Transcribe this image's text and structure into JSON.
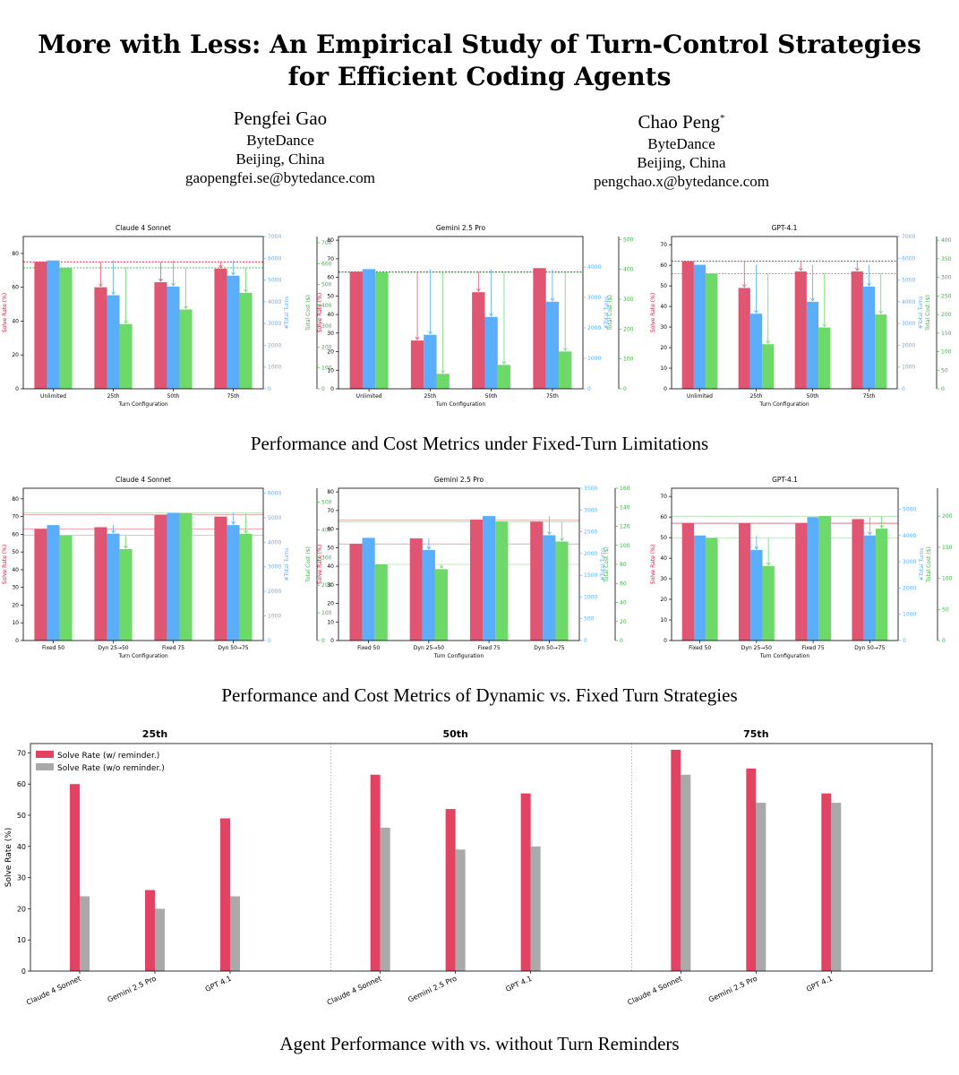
{
  "paper": {
    "title_line1": "More with Less: An Empirical Study of Turn-Control Strategies",
    "title_line2": "for Efficient Coding Agents",
    "authors": [
      {
        "name": "Pengfei Gao",
        "affiliation": "ByteDance",
        "location": "Beijing, China",
        "email": "gaopengfei.se@bytedance.com"
      },
      {
        "name": "Chao Peng",
        "mark": "*",
        "affiliation": "ByteDance",
        "location": "Beijing, China",
        "email": "pengchao.x@bytedance.com"
      }
    ],
    "captions": [
      "Performance and Cost Metrics under Fixed-Turn Limitations",
      "Performance and Cost Metrics of Dynamic vs. Fixed Turn Strategies",
      "Agent Performance with vs. without Turn Reminders"
    ]
  },
  "colors": {
    "solve": "#e05672",
    "turns": "#5aaefc",
    "cost": "#6dd968",
    "grey": "#a9a9a9",
    "red": "#dc143c"
  },
  "axis_labels": {
    "left": "Solve Rate (%)",
    "turns": "#Total Turns",
    "cost": "Total Cost ($)",
    "x": "Turn Configuration"
  },
  "chart_data": [
    {
      "type": "bar",
      "title": "Claude 4 Sonnet",
      "group": "fixed",
      "categories": [
        "Unlimited",
        "25th",
        "50th",
        "75th"
      ],
      "series": [
        {
          "name": "Solve Rate (%)",
          "axis": "left",
          "values": [
            75,
            60,
            63,
            71
          ]
        },
        {
          "name": "#Total Turns",
          "axis": "turns",
          "values": [
            5900,
            4300,
            4700,
            5200
          ]
        },
        {
          "name": "Total Cost ($)",
          "axis": "cost",
          "values": [
            580,
            310,
            380,
            460
          ]
        }
      ],
      "axes": {
        "left": {
          "range": [
            0,
            90
          ],
          "ticks": [
            0,
            20,
            40,
            60,
            80
          ]
        },
        "turns": {
          "range": [
            0,
            7000
          ],
          "ticks": [
            0,
            1000,
            2000,
            3000,
            4000,
            5000,
            6000,
            7000
          ]
        },
        "cost": {
          "range": [
            0,
            730
          ],
          "ticks": [
            0,
            100,
            200,
            300,
            400,
            500,
            600,
            700
          ]
        }
      }
    },
    {
      "type": "bar",
      "title": "Gemini 2.5 Pro",
      "group": "fixed",
      "categories": [
        "Unlimited",
        "25th",
        "50th",
        "75th"
      ],
      "series": [
        {
          "name": "Solve Rate (%)",
          "axis": "left",
          "values": [
            63,
            26,
            52,
            65
          ]
        },
        {
          "name": "#Total Turns",
          "axis": "turns",
          "values": [
            3930,
            1770,
            2360,
            2860
          ]
        },
        {
          "name": "Total Cost ($)",
          "axis": "cost",
          "values": [
            390,
            50,
            80,
            125
          ]
        }
      ],
      "axes": {
        "left": {
          "range": [
            0,
            82
          ],
          "ticks": [
            0,
            10,
            20,
            30,
            40,
            50,
            60,
            70,
            80
          ]
        },
        "turns": {
          "range": [
            0,
            5000
          ],
          "ticks": [
            0,
            1000,
            2000,
            3000,
            4000
          ]
        },
        "cost": {
          "range": [
            0,
            510
          ],
          "ticks": [
            0,
            100,
            200,
            300,
            400,
            500
          ]
        }
      }
    },
    {
      "type": "bar",
      "title": "GPT-4.1",
      "group": "fixed",
      "categories": [
        "Unlimited",
        "25th",
        "50th",
        "75th"
      ],
      "series": [
        {
          "name": "Solve Rate (%)",
          "axis": "left",
          "values": [
            62,
            49,
            57,
            57
          ]
        },
        {
          "name": "#Total Turns",
          "axis": "turns",
          "values": [
            5700,
            3450,
            4000,
            4700
          ]
        },
        {
          "name": "Total Cost ($)",
          "axis": "cost",
          "values": [
            310,
            120,
            165,
            200
          ]
        }
      ],
      "axes": {
        "left": {
          "range": [
            0,
            74
          ],
          "ticks": [
            0,
            10,
            20,
            30,
            40,
            50,
            60,
            70
          ]
        },
        "turns": {
          "range": [
            0,
            7000
          ],
          "ticks": [
            0,
            1000,
            2000,
            3000,
            4000,
            5000,
            6000,
            7000
          ]
        },
        "cost": {
          "range": [
            0,
            410
          ],
          "ticks": [
            0,
            50,
            100,
            150,
            200,
            250,
            300,
            350,
            400
          ]
        }
      }
    },
    {
      "type": "bar",
      "title": "Claude 4 Sonnet",
      "group": "dynamic",
      "categories": [
        "Fixed 50",
        "Dyn 25→50",
        "Fixed 75",
        "Dyn 50→75"
      ],
      "series": [
        {
          "name": "Solve Rate (%)",
          "axis": "left",
          "values": [
            63,
            64,
            71,
            70
          ]
        },
        {
          "name": "#Total Turns",
          "axis": "turns",
          "values": [
            4700,
            4350,
            5200,
            4700
          ]
        },
        {
          "name": "Total Cost ($)",
          "axis": "cost",
          "values": [
            380,
            330,
            460,
            385
          ]
        }
      ],
      "axes": {
        "left": {
          "range": [
            0,
            86
          ],
          "ticks": [
            0,
            10,
            20,
            30,
            40,
            50,
            60,
            70,
            80
          ]
        },
        "turns": {
          "range": [
            0,
            6200
          ],
          "ticks": [
            0,
            1000,
            2000,
            3000,
            4000,
            5000,
            6000
          ]
        },
        "cost": {
          "range": [
            0,
            550
          ],
          "ticks": [
            0,
            100,
            200,
            300,
            400,
            500
          ]
        }
      }
    },
    {
      "type": "bar",
      "title": "Gemini 2.5 Pro",
      "group": "dynamic",
      "categories": [
        "Fixed 50",
        "Dyn 25→50",
        "Fixed 75",
        "Dyn 50→75"
      ],
      "series": [
        {
          "name": "Solve Rate (%)",
          "axis": "left",
          "values": [
            52,
            55,
            65,
            64
          ]
        },
        {
          "name": "#Total Turns",
          "axis": "turns",
          "values": [
            2360,
            2080,
            2860,
            2420
          ]
        },
        {
          "name": "Total Cost ($)",
          "axis": "cost",
          "values": [
            80,
            75,
            125,
            104
          ]
        }
      ],
      "axes": {
        "left": {
          "range": [
            0,
            82
          ],
          "ticks": [
            0,
            10,
            20,
            30,
            40,
            50,
            60,
            70,
            80
          ]
        },
        "turns": {
          "range": [
            0,
            3500
          ],
          "ticks": [
            0,
            500,
            1000,
            1500,
            2000,
            2500,
            3000,
            3500
          ]
        },
        "cost": {
          "range": [
            0,
            160
          ],
          "ticks": [
            0,
            20,
            40,
            60,
            80,
            100,
            120,
            140,
            160
          ]
        }
      }
    },
    {
      "type": "bar",
      "title": "GPT-4.1",
      "group": "dynamic",
      "categories": [
        "Fixed 50",
        "Dyn 25→50",
        "Fixed 75",
        "Dyn 50→75"
      ],
      "series": [
        {
          "name": "Solve Rate (%)",
          "axis": "left",
          "values": [
            57,
            57,
            57,
            59
          ]
        },
        {
          "name": "#Total Turns",
          "axis": "turns",
          "values": [
            4000,
            3450,
            4700,
            4000
          ]
        },
        {
          "name": "Total Cost ($)",
          "axis": "cost",
          "values": [
            165,
            120,
            200,
            180
          ]
        }
      ],
      "axes": {
        "left": {
          "range": [
            0,
            74
          ],
          "ticks": [
            0,
            10,
            20,
            30,
            40,
            50,
            60,
            70
          ]
        },
        "turns": {
          "range": [
            0,
            5800
          ],
          "ticks": [
            0,
            1000,
            2000,
            3000,
            4000,
            5000
          ]
        },
        "cost": {
          "range": [
            0,
            245
          ],
          "ticks": [
            0,
            50,
            100,
            150,
            200
          ]
        }
      }
    },
    {
      "type": "bar",
      "title": "Agent Performance with vs. without Turn Reminders",
      "panels": [
        "25th",
        "50th",
        "75th"
      ],
      "categories": [
        "Claude 4 Sonnet",
        "Gemini 2.5 Pro",
        "GPT 4.1"
      ],
      "series": [
        {
          "name": "Solve Rate (w/ reminder.)",
          "values": [
            [
              60,
              26,
              49
            ],
            [
              63,
              52,
              57
            ],
            [
              71,
              65,
              57
            ]
          ]
        },
        {
          "name": "Solve Rate (w/o reminder.)",
          "values": [
            [
              24,
              20,
              24
            ],
            [
              46,
              39,
              40
            ],
            [
              63,
              54,
              54
            ]
          ]
        }
      ],
      "ylabel": "Solve Rate (%)",
      "ylim": [
        0,
        73
      ],
      "yticks": [
        0,
        10,
        20,
        30,
        40,
        50,
        60,
        70
      ]
    }
  ]
}
